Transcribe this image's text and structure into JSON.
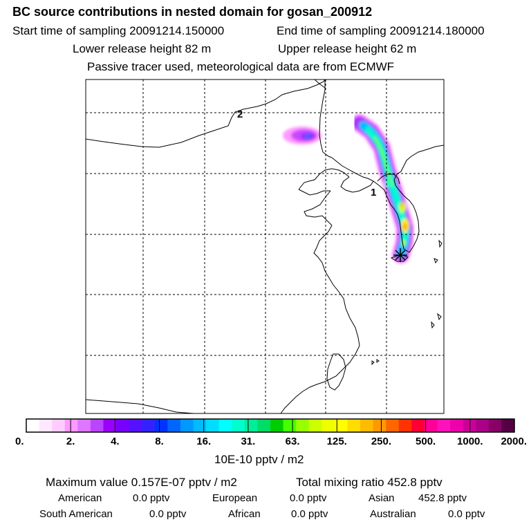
{
  "header": {
    "title": "BC  source contributions in nested domain for gosan_200912",
    "start_label": "Start time of sampling 20091214.150000",
    "end_label": "End time of sampling 20091214.180000",
    "lower_label": "Lower release height   82 m",
    "upper_label": "Upper release height   62 m",
    "note": "Passive tracer used, meteorological data are from ECMWF"
  },
  "map": {
    "markers": [
      {
        "label": "2"
      },
      {
        "label": "1"
      }
    ]
  },
  "chart_data": {
    "type": "heatmap",
    "title": "BC  source contributions in nested domain for gosan_200912",
    "colorbar": {
      "tick_labels": [
        "0.",
        "2.",
        "4.",
        "8.",
        "16.",
        "31.",
        "63.",
        "125.",
        "250.",
        "500.",
        "1000.",
        "2000."
      ],
      "unit_label": "10E-10 pptv / m2",
      "colors": [
        "#ffffff",
        "#ffe8ff",
        "#ffccff",
        "#ff99ff",
        "#dd77ff",
        "#bb44ff",
        "#9900ff",
        "#7700ff",
        "#5511ff",
        "#3322ff",
        "#0033ff",
        "#0066ff",
        "#0099ff",
        "#00bbff",
        "#00ddff",
        "#00ffff",
        "#00ffcc",
        "#00ee99",
        "#00dd66",
        "#00cc00",
        "#44ff00",
        "#99ff00",
        "#ccff00",
        "#eeff00",
        "#ffff00",
        "#ffdd00",
        "#ffbb00",
        "#ff9900",
        "#ff6600",
        "#ff3300",
        "#ff0033",
        "#ff0099",
        "#ff11bb",
        "#ee00aa",
        "#cc0099",
        "#aa0088",
        "#880066",
        "#550044"
      ]
    },
    "plumes": [
      {
        "name": "west plume",
        "peak_level": "8."
      },
      {
        "name": "korea plume",
        "peak_level": "250."
      }
    ]
  },
  "summary": {
    "max_text": "Maximum value  0.157E-07 pptv / m2",
    "total_text": "Total mixing ratio      452.8 pptv",
    "rows": [
      {
        "label": "American",
        "value": "0.0 pptv"
      },
      {
        "label": "European",
        "value": "0.0 pptv"
      },
      {
        "label": "Asian",
        "value": "452.8 pptv"
      },
      {
        "label": "South American",
        "value": "0.0 pptv"
      },
      {
        "label": "African",
        "value": "0.0 pptv"
      },
      {
        "label": "Australian",
        "value": "0.0 pptv"
      }
    ]
  }
}
